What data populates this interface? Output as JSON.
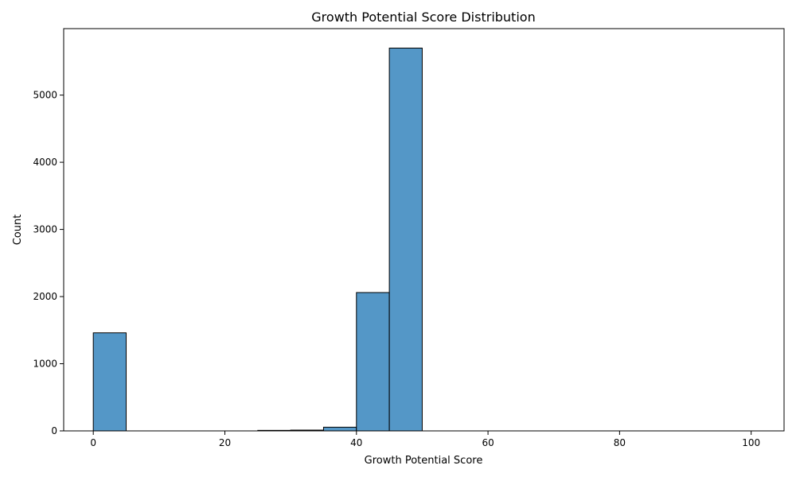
{
  "chart_data": {
    "type": "bar",
    "title": "Growth Potential Score Distribution",
    "xlabel": "Growth Potential Score",
    "ylabel": "Count",
    "xlim": [
      -4.5,
      105
    ],
    "ylim": [
      0,
      5990
    ],
    "xticks": [
      0,
      20,
      40,
      60,
      80,
      100
    ],
    "yticks": [
      0,
      1000,
      2000,
      3000,
      4000,
      5000
    ],
    "bar_color": "#5497c7",
    "edge_color": "#000000",
    "bins": [
      {
        "x0": 0,
        "x1": 5,
        "count": 1460
      },
      {
        "x0": 5,
        "x1": 10,
        "count": 0
      },
      {
        "x0": 10,
        "x1": 15,
        "count": 0
      },
      {
        "x0": 15,
        "x1": 20,
        "count": 0
      },
      {
        "x0": 20,
        "x1": 25,
        "count": 0
      },
      {
        "x0": 25,
        "x1": 30,
        "count": 8
      },
      {
        "x0": 30,
        "x1": 35,
        "count": 12
      },
      {
        "x0": 35,
        "x1": 40,
        "count": 55
      },
      {
        "x0": 40,
        "x1": 45,
        "count": 2060
      },
      {
        "x0": 45,
        "x1": 50,
        "count": 5700
      },
      {
        "x0": 50,
        "x1": 55,
        "count": 0
      },
      {
        "x0": 55,
        "x1": 60,
        "count": 0
      },
      {
        "x0": 60,
        "x1": 65,
        "count": 0
      },
      {
        "x0": 65,
        "x1": 70,
        "count": 0
      },
      {
        "x0": 70,
        "x1": 75,
        "count": 0
      },
      {
        "x0": 75,
        "x1": 80,
        "count": 0
      },
      {
        "x0": 80,
        "x1": 85,
        "count": 0
      },
      {
        "x0": 85,
        "x1": 90,
        "count": 0
      },
      {
        "x0": 90,
        "x1": 95,
        "count": 0
      },
      {
        "x0": 95,
        "x1": 100,
        "count": 0
      }
    ]
  }
}
